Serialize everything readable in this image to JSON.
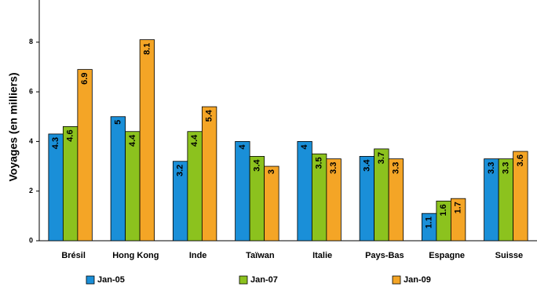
{
  "chart_data": {
    "type": "bar",
    "y_label": "Voyages (en milliers)",
    "categories": [
      "Brésil",
      "Hong Kong",
      "Inde",
      "Taïwan",
      "Italie",
      "Pays-Bas",
      "Espagne",
      "Suisse"
    ],
    "series": [
      {
        "name": "Jan-05",
        "color": "#1a8fd8",
        "values": [
          4.3,
          5.0,
          3.2,
          4.0,
          4.0,
          3.4,
          1.1,
          3.3
        ]
      },
      {
        "name": "Jan-07",
        "color": "#8cc21e",
        "values": [
          4.6,
          4.4,
          4.4,
          3.4,
          3.5,
          3.7,
          1.6,
          3.3
        ]
      },
      {
        "name": "Jan-09",
        "color": "#f4a526",
        "values": [
          6.9,
          8.1,
          5.4,
          3.0,
          3.3,
          3.3,
          1.7,
          3.6
        ]
      }
    ],
    "ylim": [
      0,
      9.7
    ],
    "yticks": [
      0,
      2,
      4,
      6,
      8
    ],
    "grid": false,
    "legend": "bottom"
  }
}
